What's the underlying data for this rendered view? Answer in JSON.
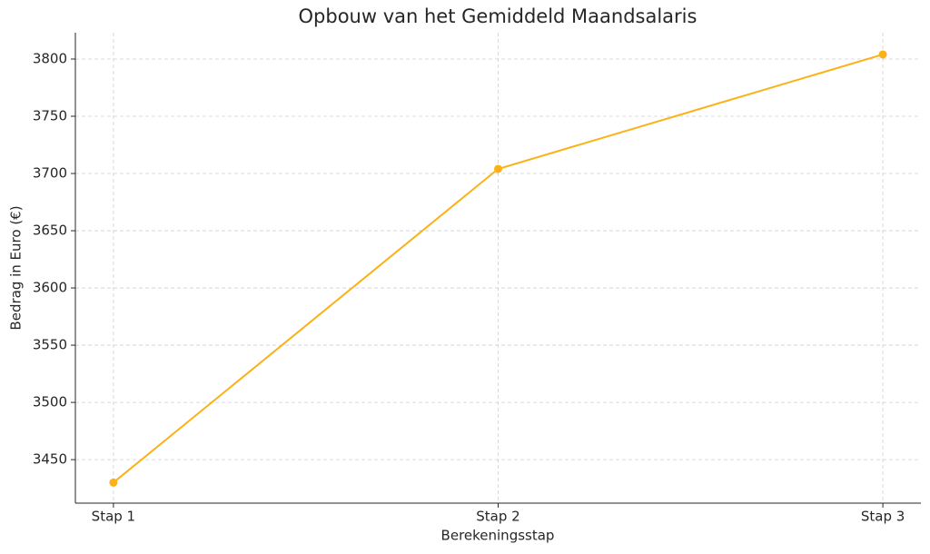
{
  "chart_data": {
    "type": "line",
    "title": "Opbouw van het Gemiddeld Maandsalaris",
    "x_label": "Berekeningsstap",
    "y_label": "Bedrag in Euro (€)",
    "categories": [
      "Stap 1",
      "Stap 2",
      "Stap 3"
    ],
    "series": [
      {
        "color": "#fbb117",
        "values": [
          3430,
          3704,
          3804
        ]
      }
    ],
    "ylim": [
      3412,
      3823
    ],
    "yticks": [
      3450,
      3500,
      3550,
      3600,
      3650,
      3700,
      3750,
      3800
    ],
    "grid": true
  }
}
